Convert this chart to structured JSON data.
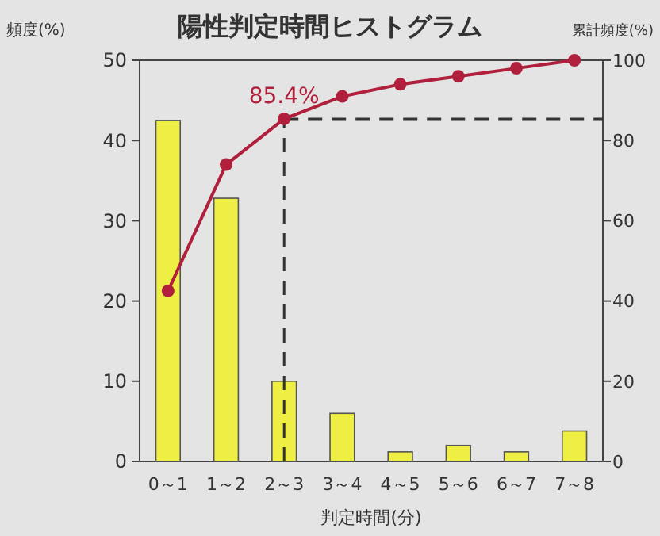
{
  "chart_data": {
    "type": "bar",
    "title": "陽性判定時間ヒストグラム",
    "xlabel": "判定時間(分)",
    "ylabel": "頻度(%)",
    "y2label": "累計頻度(%)",
    "categories": [
      "0～1",
      "1～2",
      "2～3",
      "3～4",
      "4～5",
      "5～6",
      "6～7",
      "7～8"
    ],
    "series": [
      {
        "color": "#eeee44",
        "values": [
          42.5,
          32.8,
          10,
          6,
          1.2,
          2,
          1.2,
          3.8
        ]
      },
      {
        "type": "line",
        "axis": "y2",
        "color": "#b0203c",
        "marker": "circle",
        "values": [
          42.5,
          74,
          85.4,
          91,
          94,
          96,
          98,
          100
        ]
      }
    ],
    "ylim": [
      0,
      50
    ],
    "yticks": [
      0,
      10,
      20,
      30,
      40,
      50
    ],
    "y2lim": [
      0,
      100
    ],
    "y2ticks": [
      0,
      20,
      40,
      60,
      80,
      100
    ],
    "ref_lines": [
      {
        "axis": "y2",
        "value": 85.4,
        "line_style": "dashed"
      },
      {
        "axis": "x",
        "value": "2～3",
        "line_style": "dashed"
      }
    ],
    "annotations": [
      "85.4%"
    ],
    "grid": false
  }
}
